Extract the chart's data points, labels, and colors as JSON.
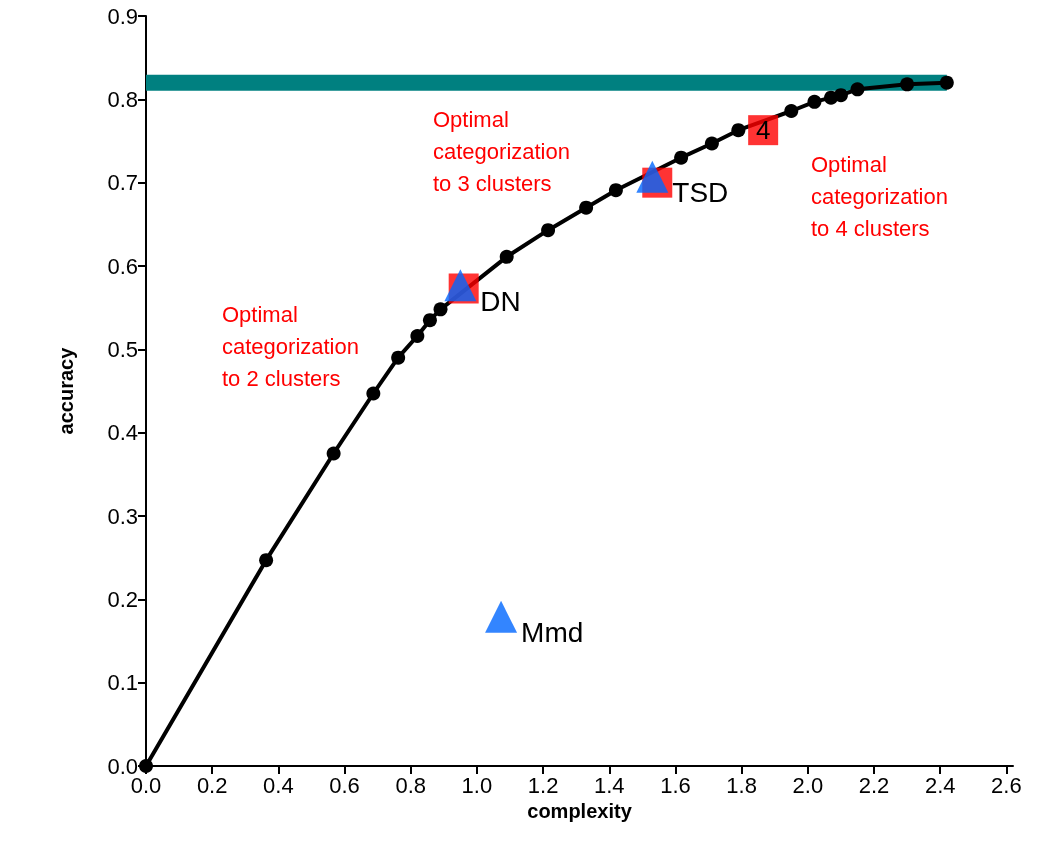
{
  "chart_data": {
    "type": "line",
    "xlabel": "complexity",
    "ylabel": "accuracy",
    "xlim": [
      0,
      2.62
    ],
    "ylim": [
      0,
      0.9
    ],
    "xticks": [
      {
        "value": 0,
        "label": "0.0"
      },
      {
        "value": 0.2,
        "label": "0.2"
      },
      {
        "value": 0.4,
        "label": "0.4"
      },
      {
        "value": 0.6,
        "label": "0.6"
      },
      {
        "value": 0.8,
        "label": "0.8"
      },
      {
        "value": 1,
        "label": "1.0"
      },
      {
        "value": 1.2,
        "label": "1.2"
      },
      {
        "value": 1.4,
        "label": "1.4"
      },
      {
        "value": 1.6,
        "label": "1.6"
      },
      {
        "value": 1.8,
        "label": "1.8"
      },
      {
        "value": 2,
        "label": "2.0"
      },
      {
        "value": 2.2,
        "label": "2.2"
      },
      {
        "value": 2.4,
        "label": "2.4"
      },
      {
        "value": 2.6,
        "label": "2.6"
      }
    ],
    "yticks": [
      {
        "value": 0,
        "label": "0.0"
      },
      0.1,
      0.2,
      0.3,
      0.4,
      0.5,
      0.6,
      0.7,
      0.8,
      0.9
    ],
    "grid": false,
    "series": [
      {
        "color": "#008080",
        "marker": "none",
        "x": [
          0,
          2.42
        ],
        "values": [
          0.82,
          0.82
        ]
      },
      {
        "color": "#000000",
        "marker": "circle",
        "x": [
          0,
          0.363,
          0.567,
          0.687,
          0.762,
          0.82,
          0.858,
          0.89,
          1.09,
          1.215,
          1.33,
          1.42,
          1.617,
          1.71,
          1.79,
          1.95,
          2.02,
          2.07,
          2.1,
          2.15,
          2.3,
          2.42
        ],
        "values": [
          0,
          0.247,
          0.375,
          0.447,
          0.49,
          0.516,
          0.535,
          0.548,
          0.611,
          0.643,
          0.67,
          0.691,
          0.73,
          0.747,
          0.763,
          0.786,
          0.797,
          0.802,
          0.805,
          0.812,
          0.818,
          0.82
        ]
      },
      {
        "type": "scatter",
        "color": "#ff0000",
        "marker": "square",
        "x": [
          0.96,
          1.545,
          1.865
        ],
        "values": [
          0.573,
          0.7,
          0.763
        ]
      },
      {
        "type": "scatter",
        "color": "#0066ff",
        "marker": "triangle",
        "x": [
          0.95,
          1.53,
          1.073
        ],
        "values": [
          0.577,
          0.707,
          0.179
        ]
      }
    ],
    "annotations": [
      {
        "text": "4",
        "x": 1.865,
        "y": 0.763
      },
      {
        "text": "DN",
        "x": 0.95,
        "y": 0.577
      },
      {
        "text": "TSD",
        "x": 1.53,
        "y": 0.707
      },
      {
        "text": "Mmd",
        "x": 1.073,
        "y": 0.179
      },
      "Optimal\ncategorization\nto 2 clusters",
      "Optimal\ncategorization\nto 3 clusters",
      "Optimal\ncategorization\nto 4 clusters"
    ]
  }
}
